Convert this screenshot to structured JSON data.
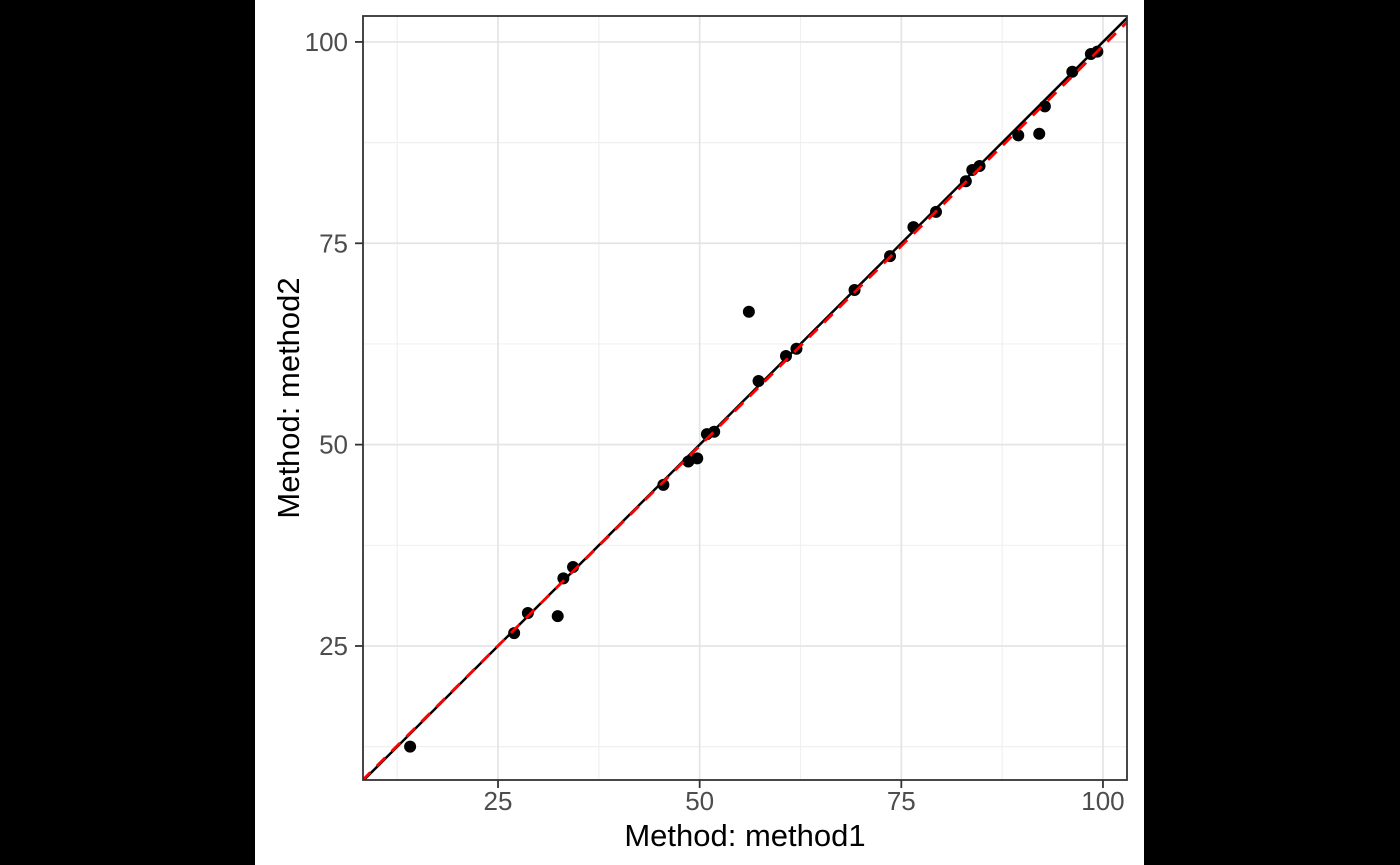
{
  "window": {
    "background_color": "#000000",
    "plot_background_color": "#ffffff"
  },
  "chart_data": {
    "type": "scatter",
    "title": "",
    "xlabel": "Method: method1",
    "ylabel": "Method: method2",
    "xlim": [
      8.26,
      102.98
    ],
    "ylim": [
      8.36,
      103.22
    ],
    "x_ticks": [
      25,
      50,
      75,
      100
    ],
    "y_ticks": [
      25,
      50,
      75,
      100
    ],
    "x_minor_ticks": [
      12.5,
      37.5,
      62.5,
      87.5
    ],
    "y_minor_ticks": [
      12.5,
      37.5,
      62.5,
      87.5
    ],
    "grid": "major+minor",
    "legend": "none",
    "points": [
      [
        14.1,
        12.5
      ],
      [
        27.0,
        26.6
      ],
      [
        28.7,
        29.1
      ],
      [
        32.4,
        28.7
      ],
      [
        33.1,
        33.4
      ],
      [
        34.3,
        34.8
      ],
      [
        45.5,
        45.0
      ],
      [
        48.6,
        47.9
      ],
      [
        49.7,
        48.3
      ],
      [
        50.9,
        51.3
      ],
      [
        51.8,
        51.6
      ],
      [
        56.1,
        66.5
      ],
      [
        57.3,
        57.9
      ],
      [
        60.7,
        61.0
      ],
      [
        62.0,
        61.9
      ],
      [
        69.2,
        69.2
      ],
      [
        73.6,
        73.4
      ],
      [
        76.5,
        77.0
      ],
      [
        79.3,
        78.9
      ],
      [
        83.0,
        82.7
      ],
      [
        83.8,
        84.1
      ],
      [
        84.7,
        84.6
      ],
      [
        89.5,
        88.4
      ],
      [
        92.1,
        88.6
      ],
      [
        92.8,
        92.0
      ],
      [
        96.2,
        96.3
      ],
      [
        98.5,
        98.5
      ],
      [
        99.3,
        98.8
      ]
    ],
    "point_style": {
      "color": "#000000",
      "radius": 6
    },
    "lines": [
      {
        "name": "identity-line",
        "slope": 1,
        "intercept": 0,
        "color": "#000000",
        "dash": "solid",
        "width": 2.5
      },
      {
        "name": "fitted-line",
        "slope": 0.993,
        "intercept": 0.2,
        "color": "#ff0000",
        "dash": "12 9",
        "width": 2.8
      }
    ],
    "style": {
      "panel_border_color": "#333333",
      "major_grid_color": "#e4e4e4",
      "minor_grid_color": "#f0f0f0",
      "tick_mark_color": "#333333",
      "tick_label_color": "#4d4d4d",
      "axis_title_color": "#000000"
    }
  }
}
